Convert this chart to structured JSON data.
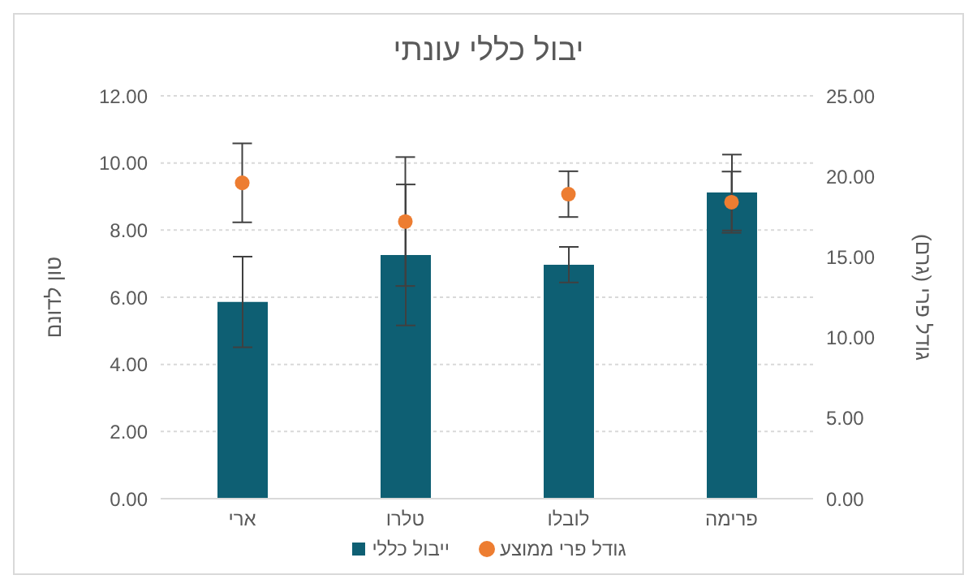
{
  "chart_data": {
    "type": "bar",
    "title": "יבול כללי עונתי",
    "ylabel": "טון לדונם",
    "y2label": "גודל פרי (גרם)",
    "categories": [
      "ארי",
      "טלרו",
      "לובלו",
      "פרימה"
    ],
    "series": [
      {
        "name": "ייבול כללי",
        "color": "#0e5f73",
        "values": [
          5.86,
          7.26,
          6.97,
          9.12
        ],
        "errors": [
          1.35,
          2.1,
          0.53,
          1.13
        ]
      },
      {
        "name": "גודל פרי ממוצע",
        "type": "scatter",
        "axis": "y2",
        "color": "#ed7d31",
        "values": [
          19.6,
          17.2,
          18.9,
          18.4
        ],
        "errors": [
          2.45,
          4,
          1.42,
          1.9
        ]
      }
    ],
    "ylim": [
      0,
      12
    ],
    "yticks": [
      {
        "value": 0,
        "label": "0.00"
      },
      {
        "value": 2,
        "label": "2.00"
      },
      {
        "value": 4,
        "label": "4.00"
      },
      {
        "value": 6,
        "label": "6.00"
      },
      {
        "value": 8,
        "label": "8.00"
      },
      {
        "value": 10,
        "label": "10.00"
      },
      {
        "value": 12,
        "label": "12.00"
      }
    ],
    "y2lim": [
      0,
      25
    ],
    "y2ticks": [
      {
        "value": 0,
        "label": "0.00"
      },
      {
        "value": 5,
        "label": "5.00"
      },
      {
        "value": 10,
        "label": "10.00"
      },
      {
        "value": 15,
        "label": "15.00"
      },
      {
        "value": 20,
        "label": "20.00"
      },
      {
        "value": 25,
        "label": "25.00"
      }
    ],
    "grid": "y",
    "legend": "bottom",
    "marker": "circle"
  }
}
